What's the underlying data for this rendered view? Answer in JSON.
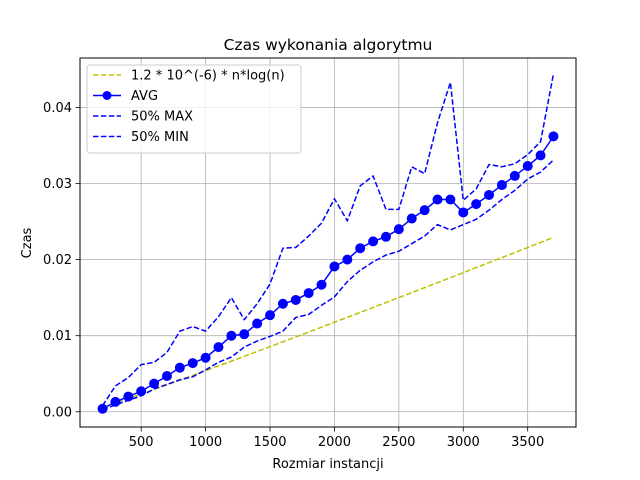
{
  "chart_data": {
    "type": "line",
    "title": "Czas wykonania algorytmu",
    "xlabel": "Rozmiar instancji",
    "ylabel": "Czas",
    "xlim": [
      25,
      3875
    ],
    "ylim": [
      -0.002,
      0.0465
    ],
    "xticks": [
      500,
      1000,
      1500,
      2000,
      2500,
      3000,
      3500
    ],
    "xtick_labels": [
      "500",
      "1000",
      "1500",
      "2000",
      "2500",
      "3000",
      "3500"
    ],
    "yticks": [
      0.0,
      0.01,
      0.02,
      0.03,
      0.04
    ],
    "ytick_labels": [
      "0.00",
      "0.01",
      "0.02",
      "0.03",
      "0.04"
    ],
    "grid": true,
    "legend_position": "top-left",
    "x": [
      200,
      300,
      400,
      500,
      600,
      700,
      800,
      900,
      1000,
      1100,
      1200,
      1300,
      1400,
      1500,
      1600,
      1700,
      1800,
      1900,
      2000,
      2100,
      2200,
      2300,
      2400,
      2500,
      2600,
      2700,
      2800,
      2900,
      3000,
      3100,
      3200,
      3300,
      3400,
      3500,
      3600,
      3700
    ],
    "series": [
      {
        "name": "1.2 * 10^(-6) * n*log(n)",
        "style": "dashed",
        "color": "#bfbf00",
        "marker": false,
        "values": [
          0.00055,
          0.00114,
          0.00173,
          0.00233,
          0.00293,
          0.00354,
          0.00416,
          0.00478,
          0.0054,
          0.00603,
          0.00666,
          0.00729,
          0.00792,
          0.00856,
          0.0092,
          0.00984,
          0.01048,
          0.01112,
          0.01177,
          0.01241,
          0.01306,
          0.01371,
          0.01436,
          0.01501,
          0.01566,
          0.01632,
          0.01697,
          0.01763,
          0.01829,
          0.01895,
          0.01961,
          0.02027,
          0.02093,
          0.02159,
          0.02225,
          0.02292
        ]
      },
      {
        "name": "AVG",
        "style": "solid",
        "color": "#0000ff",
        "marker": true,
        "values": [
          0.0004,
          0.0013,
          0.002,
          0.0027,
          0.0037,
          0.0047,
          0.0058,
          0.0064,
          0.0071,
          0.0085,
          0.01,
          0.0102,
          0.0116,
          0.0127,
          0.0142,
          0.0147,
          0.0156,
          0.0167,
          0.0191,
          0.02,
          0.0215,
          0.0224,
          0.023,
          0.024,
          0.0254,
          0.0265,
          0.0279,
          0.0279,
          0.0262,
          0.0273,
          0.0285,
          0.0298,
          0.031,
          0.0323,
          0.0337,
          0.0362
        ]
      },
      {
        "name": "50% MAX",
        "style": "dashed",
        "color": "#0000ff",
        "marker": false,
        "values": [
          0.0008,
          0.0034,
          0.0045,
          0.0062,
          0.0065,
          0.0078,
          0.0106,
          0.0112,
          0.0106,
          0.0125,
          0.015,
          0.0121,
          0.0142,
          0.0168,
          0.0215,
          0.0216,
          0.0231,
          0.0248,
          0.028,
          0.0251,
          0.0297,
          0.031,
          0.0266,
          0.0266,
          0.0322,
          0.0313,
          0.038,
          0.0433,
          0.0278,
          0.0293,
          0.0325,
          0.0322,
          0.0326,
          0.0338,
          0.0355,
          0.0444
        ]
      },
      {
        "name": "50% MIN",
        "style": "dashed",
        "color": "#0000ff",
        "marker": false,
        "values": [
          0.0003,
          0.0009,
          0.0015,
          0.0021,
          0.003,
          0.0036,
          0.0042,
          0.0046,
          0.0055,
          0.0065,
          0.0072,
          0.0085,
          0.0093,
          0.0099,
          0.0106,
          0.0124,
          0.0128,
          0.014,
          0.0151,
          0.0171,
          0.0186,
          0.0197,
          0.0206,
          0.0211,
          0.0221,
          0.0231,
          0.0246,
          0.0239,
          0.0246,
          0.0253,
          0.0265,
          0.0279,
          0.0291,
          0.0306,
          0.0315,
          0.0331
        ]
      }
    ]
  }
}
